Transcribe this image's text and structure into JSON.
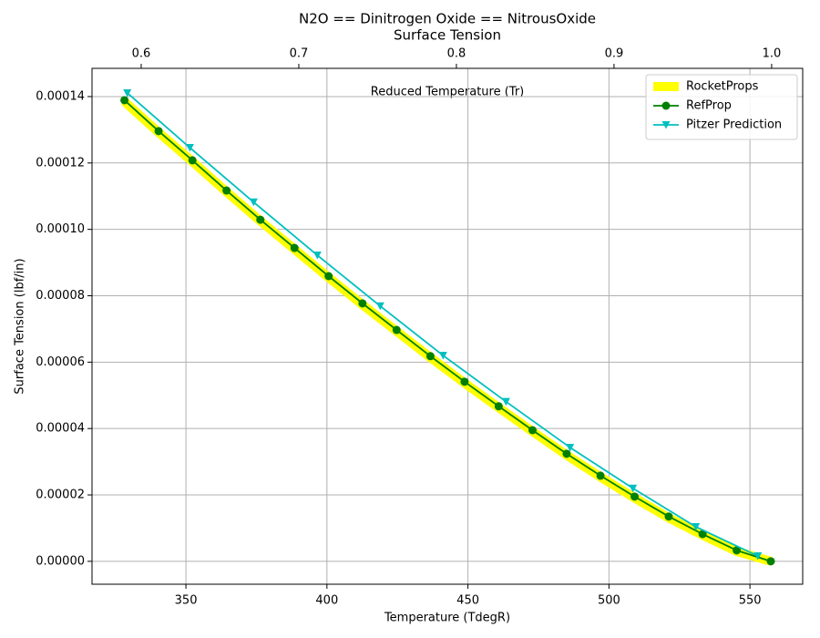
{
  "chart_data": {
    "type": "line",
    "title": "N2O == Dinitrogen Oxide == NitrousOxide",
    "subtitle": "Surface Tension",
    "xlabel": "Temperature (TdegR)",
    "ylabel": "Surface Tension (lbf/in)",
    "x2label": "Reduced Temperature (Tr)",
    "xlim": [
      316.7,
      568.7
    ],
    "xticks": [
      350,
      400,
      450,
      500,
      550
    ],
    "x2lim": [
      0.5688,
      1.0197
    ],
    "x2ticks": [
      0.6,
      0.7,
      0.8,
      0.9,
      {
        "value": 1.0,
        "label": "1.0"
      }
    ],
    "ylim": [
      -6.9e-06,
      0.0001485
    ],
    "yticks": [
      {
        "value": 0,
        "label": "0.00000"
      },
      {
        "value": 2e-05,
        "label": "0.00002"
      },
      {
        "value": 4e-05,
        "label": "0.00004"
      },
      {
        "value": 6e-05,
        "label": "0.00006"
      },
      {
        "value": 8e-05,
        "label": "0.00008"
      },
      {
        "value": 0.0001,
        "label": "0.00010"
      },
      {
        "value": 0.00012,
        "label": "0.00012"
      },
      {
        "value": 0.00014,
        "label": "0.00014"
      }
    ],
    "grid": true,
    "legend": "upper right",
    "series": [
      {
        "name": "RocketProps",
        "color": "#ffff00",
        "linewidth": 10,
        "marker": "none",
        "x": [
          328.2,
          340.3,
          352.3,
          364.4,
          376.4,
          388.5,
          400.6,
          412.6,
          424.7,
          436.7,
          448.8,
          460.9,
          472.9,
          485.0,
          497.0,
          509.1,
          521.2,
          533.2,
          545.3,
          557.4
        ],
        "values": [
          0.0001385,
          0.0001292,
          0.0001204,
          0.0001113,
          0.0001025,
          9.4e-05,
          8.55e-05,
          7.73e-05,
          6.93e-05,
          6.14e-05,
          5.37e-05,
          4.63e-05,
          3.91e-05,
          3.2e-05,
          2.54e-05,
          1.91e-05,
          1.31e-05,
          7.9e-06,
          3e-06,
          0
        ]
      },
      {
        "name": "RefProp",
        "color": "#008000",
        "linewidth": 1.8,
        "marker": "o",
        "x": [
          328.2,
          340.3,
          352.3,
          364.4,
          376.4,
          388.5,
          400.6,
          412.6,
          424.7,
          436.7,
          448.8,
          460.9,
          472.9,
          485.0,
          497.0,
          509.1,
          521.2,
          533.2,
          545.3,
          557.4
        ],
        "values": [
          0.0001389,
          0.0001296,
          0.0001208,
          0.0001117,
          0.0001029,
          9.44e-05,
          8.59e-05,
          7.77e-05,
          6.97e-05,
          6.18e-05,
          5.41e-05,
          4.67e-05,
          3.95e-05,
          3.24e-05,
          2.58e-05,
          1.95e-05,
          1.35e-05,
          8.2e-06,
          3.3e-06,
          0
        ]
      },
      {
        "name": "Pitzer Prediction",
        "color": "#00bfbf",
        "linewidth": 1.8,
        "marker": "v",
        "x": [
          329.2,
          351.4,
          374.0,
          396.6,
          418.9,
          441.2,
          463.5,
          486.2,
          508.5,
          530.8,
          552.8
        ],
        "values": [
          0.0001411,
          0.0001246,
          0.0001082,
          9.22e-05,
          7.69e-05,
          6.2e-05,
          4.81e-05,
          3.43e-05,
          2.2e-05,
          1.04e-05,
          1.6e-06
        ]
      }
    ]
  }
}
